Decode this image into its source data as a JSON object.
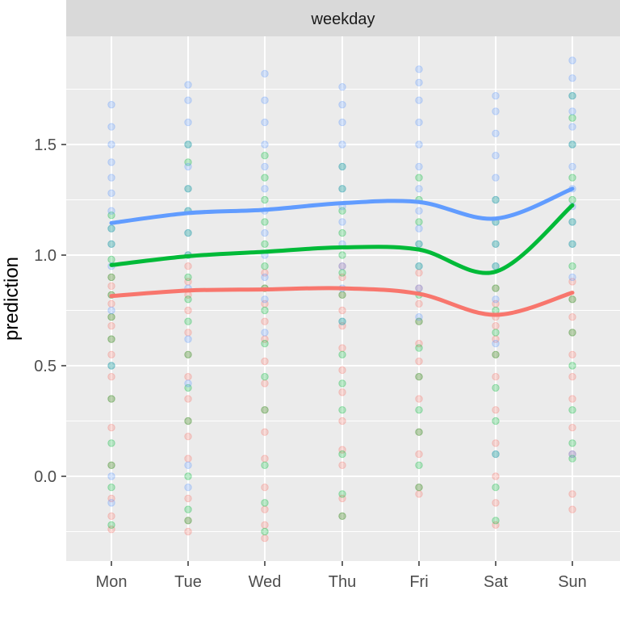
{
  "chart_data": {
    "type": "scatter",
    "facet_label": "weekday",
    "xlabel": "",
    "ylabel": "prediction",
    "categories": [
      "Mon",
      "Tue",
      "Wed",
      "Thu",
      "Fri",
      "Sat",
      "Sun"
    ],
    "yticks": [
      0.0,
      0.5,
      1.0,
      1.5
    ],
    "ytick_labels": [
      "0.0",
      "0.5",
      "1.0",
      "1.5"
    ],
    "ylim": [
      -0.38,
      1.92
    ],
    "grid": true,
    "background": "#ebebeb",
    "point_alpha": 0.25,
    "series": [
      {
        "color": "#f8766d",
        "smooth": [
          0.815,
          0.84,
          0.845,
          0.85,
          0.825,
          0.73,
          0.83
        ],
        "points": [
          [
            -0.24,
            -0.18,
            -0.1,
            0.05,
            0.22,
            0.35,
            0.45,
            0.55,
            0.62,
            0.68,
            0.72,
            0.78,
            0.82,
            0.86,
            0.9
          ],
          [
            -0.25,
            -0.2,
            -0.1,
            0.08,
            0.18,
            0.25,
            0.35,
            0.45,
            0.55,
            0.65,
            0.75,
            0.82,
            0.88,
            0.95
          ],
          [
            -0.28,
            -0.22,
            -0.15,
            -0.05,
            0.08,
            0.2,
            0.3,
            0.42,
            0.52,
            0.62,
            0.7,
            0.78,
            0.85,
            0.92
          ],
          [
            -0.18,
            -0.1,
            0.05,
            0.12,
            0.25,
            0.38,
            0.48,
            0.58,
            0.68,
            0.75,
            0.82,
            0.9,
            0.95
          ],
          [
            -0.08,
            -0.05,
            0.1,
            0.2,
            0.35,
            0.45,
            0.52,
            0.6,
            0.7,
            0.78,
            0.85,
            0.92
          ],
          [
            -0.22,
            -0.12,
            0.0,
            0.15,
            0.3,
            0.45,
            0.55,
            0.62,
            0.68,
            0.72,
            0.78,
            0.85
          ],
          [
            -0.15,
            -0.08,
            0.1,
            0.22,
            0.35,
            0.45,
            0.55,
            0.65,
            0.72,
            0.8,
            0.88
          ]
        ]
      },
      {
        "color": "#00ba38",
        "smooth": [
          0.955,
          0.995,
          1.015,
          1.035,
          1.025,
          0.925,
          1.225
        ],
        "points": [
          [
            -0.22,
            -0.05,
            0.05,
            0.15,
            0.35,
            0.5,
            0.62,
            0.72,
            0.82,
            0.9,
            0.98,
            1.05,
            1.12,
            1.18
          ],
          [
            -0.2,
            -0.15,
            0.0,
            0.25,
            0.4,
            0.55,
            0.7,
            0.8,
            0.9,
            1.0,
            1.1,
            1.2,
            1.3,
            1.42,
            1.5
          ],
          [
            -0.25,
            -0.12,
            0.05,
            0.3,
            0.45,
            0.6,
            0.75,
            0.85,
            0.95,
            1.05,
            1.15,
            1.25,
            1.35,
            1.45
          ],
          [
            -0.18,
            -0.08,
            0.1,
            0.3,
            0.42,
            0.55,
            0.7,
            0.82,
            0.92,
            1.0,
            1.1,
            1.2,
            1.3,
            1.4
          ],
          [
            -0.05,
            0.05,
            0.2,
            0.3,
            0.45,
            0.58,
            0.7,
            0.82,
            0.95,
            1.05,
            1.15,
            1.25,
            1.35
          ],
          [
            -0.2,
            -0.05,
            0.1,
            0.25,
            0.4,
            0.55,
            0.65,
            0.75,
            0.85,
            0.95,
            1.05,
            1.15,
            1.25
          ],
          [
            0.08,
            0.15,
            0.3,
            0.5,
            0.65,
            0.8,
            0.95,
            1.05,
            1.15,
            1.25,
            1.35,
            1.5,
            1.62,
            1.72
          ]
        ]
      },
      {
        "color": "#619cff",
        "smooth": [
          1.145,
          1.19,
          1.205,
          1.235,
          1.24,
          1.165,
          1.3
        ],
        "points": [
          [
            -0.12,
            0.0,
            0.5,
            0.75,
            0.95,
            1.05,
            1.12,
            1.2,
            1.28,
            1.35,
            1.42,
            1.5,
            1.58,
            1.68
          ],
          [
            -0.05,
            0.05,
            0.42,
            0.62,
            0.85,
            1.0,
            1.1,
            1.2,
            1.3,
            1.4,
            1.5,
            1.6,
            1.7,
            1.77
          ],
          [
            0.65,
            0.8,
            0.9,
            1.0,
            1.1,
            1.2,
            1.3,
            1.4,
            1.5,
            1.6,
            1.7,
            1.82
          ],
          [
            0.7,
            0.85,
            0.95,
            1.05,
            1.15,
            1.22,
            1.3,
            1.4,
            1.5,
            1.6,
            1.68,
            1.76
          ],
          [
            0.72,
            0.85,
            0.95,
            1.05,
            1.12,
            1.2,
            1.3,
            1.4,
            1.5,
            1.6,
            1.7,
            1.78,
            1.84
          ],
          [
            0.1,
            0.6,
            0.8,
            0.95,
            1.05,
            1.15,
            1.25,
            1.35,
            1.45,
            1.55,
            1.65,
            1.72
          ],
          [
            0.1,
            0.9,
            1.05,
            1.15,
            1.22,
            1.3,
            1.4,
            1.5,
            1.58,
            1.65,
            1.72,
            1.8,
            1.88
          ]
        ]
      }
    ]
  }
}
